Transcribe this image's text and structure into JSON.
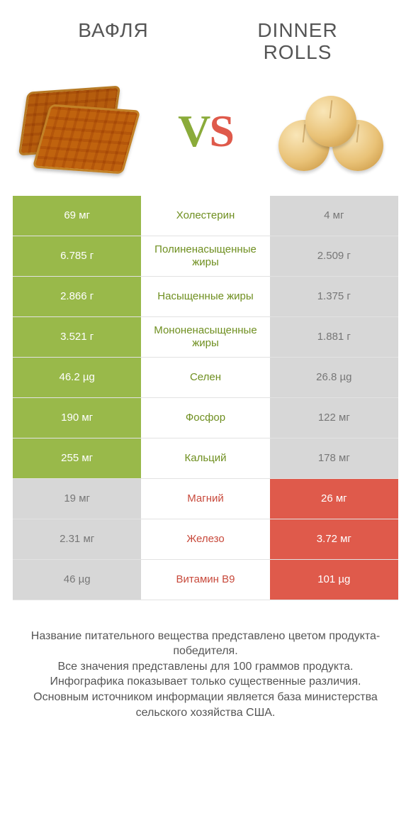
{
  "colors": {
    "left_win": "#99b94a",
    "right_win": "#df5a4b",
    "lose": "#d7d7d7",
    "left_label": "#6f8f20",
    "right_label": "#c84a3c",
    "lose_text": "#777777"
  },
  "header": {
    "left_title": "ВАФЛЯ",
    "right_title": "DINNER ROLLS"
  },
  "rows": [
    {
      "left": "69 мг",
      "label": "Холестерин",
      "right": "4 мг",
      "winner": "left"
    },
    {
      "left": "6.785 г",
      "label": "Полиненасыщенные жиры",
      "right": "2.509 г",
      "winner": "left"
    },
    {
      "left": "2.866 г",
      "label": "Насыщенные жиры",
      "right": "1.375 г",
      "winner": "left"
    },
    {
      "left": "3.521 г",
      "label": "Мононенасыщенные жиры",
      "right": "1.881 г",
      "winner": "left"
    },
    {
      "left": "46.2 µg",
      "label": "Селен",
      "right": "26.8 µg",
      "winner": "left"
    },
    {
      "left": "190 мг",
      "label": "Фосфор",
      "right": "122 мг",
      "winner": "left"
    },
    {
      "left": "255 мг",
      "label": "Кальций",
      "right": "178 мг",
      "winner": "left"
    },
    {
      "left": "19 мг",
      "label": "Магний",
      "right": "26 мг",
      "winner": "right"
    },
    {
      "left": "2.31 мг",
      "label": "Железо",
      "right": "3.72 мг",
      "winner": "right"
    },
    {
      "left": "46 µg",
      "label": "Витамин B9",
      "right": "101 µg",
      "winner": "right"
    }
  ],
  "footer": {
    "l1": "Название питательного вещества представлено цветом продукта-победителя.",
    "l2": "Все значения представлены для 100 граммов продукта.",
    "l3": "Инфографика показывает только существенные различия.",
    "l4": "Основным источником информации является база министерства сельского хозяйства США."
  }
}
